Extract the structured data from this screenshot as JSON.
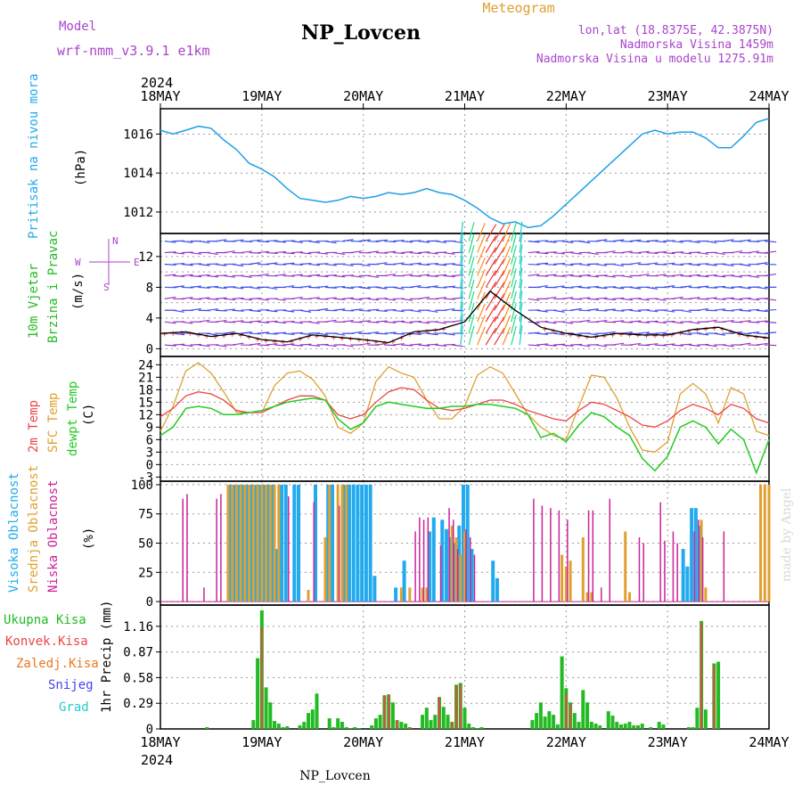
{
  "header": {
    "model_label": "Model",
    "model_name": "wrf-nmm_v3.9.1 e1km",
    "title": "NP_Lovcen",
    "meteogram_label": "Meteogram",
    "lonlat": "lon,lat (18.8375E, 42.3875N)",
    "altitude": "Nadmorska Visina 1459m",
    "model_altitude": "Nadmorska Visina u modelu 1275.91m",
    "year": "2024",
    "footer_title": "NP_Lovcen",
    "watermark": "made by Angel"
  },
  "colors": {
    "pressure": "#1ea0e6",
    "wind_label": "#22bb22",
    "wind_label2": "#22bb22",
    "t2m": "#ee4444",
    "sfc": "#e0a030",
    "dewpt": "#22cc22",
    "cloud_high": "#22aaee",
    "cloud_mid": "#e0a030",
    "cloud_low": "#cc2299",
    "precip_total": "#22bb22",
    "precip_conv": "#ee4444",
    "precip_frz": "#ee7722",
    "snow": "#4444ee",
    "hail": "#22cccc",
    "header_purple": "#aa44cc",
    "meteogram_orange": "#e0a030"
  },
  "chart_data": [
    {
      "type": "line",
      "panel": "pressure",
      "ylabel_1": "Pritisak na nivou mora",
      "ylabel_2": "(hPa)",
      "x_ticks": [
        "18MAY",
        "19MAY",
        "20MAY",
        "21MAY",
        "22MAY",
        "23MAY",
        "24MAY"
      ],
      "ylim": [
        1010.9,
        1017.3
      ],
      "y_ticks": [
        1012,
        1014,
        1016
      ],
      "grid": true,
      "series": [
        {
          "x": [
            0,
            3,
            6,
            9,
            12,
            15,
            18,
            21,
            24,
            27,
            30,
            33,
            36,
            39,
            42,
            45,
            48,
            51,
            54,
            57,
            60,
            63,
            66,
            69,
            72,
            75,
            78,
            81,
            84,
            87,
            90,
            93,
            96,
            99,
            102,
            105,
            108,
            111,
            114,
            117,
            120,
            123,
            126,
            129,
            132,
            135,
            138,
            141,
            144
          ],
          "values": [
            1016.2,
            1016.0,
            1016.2,
            1016.4,
            1016.3,
            1015.7,
            1015.2,
            1014.5,
            1014.2,
            1013.8,
            1013.2,
            1012.7,
            1012.6,
            1012.5,
            1012.6,
            1012.8,
            1012.7,
            1012.8,
            1013.0,
            1012.9,
            1013.0,
            1013.2,
            1013.0,
            1012.9,
            1012.6,
            1012.2,
            1011.7,
            1011.4,
            1011.5,
            1011.2,
            1011.3,
            1011.8,
            1012.4,
            1013.0,
            1013.6,
            1014.2,
            1014.8,
            1015.4,
            1016.0,
            1016.2,
            1016.0,
            1016.1,
            1016.1,
            1015.8,
            1015.3,
            1015.3,
            1015.9,
            1016.6,
            1016.8
          ]
        }
      ]
    },
    {
      "type": "line",
      "panel": "wind",
      "ylabel_1": "10m Vjetar",
      "ylabel_2": "Brzina i Pravac",
      "ylabel_3": "(m/s)",
      "compass": [
        "N",
        "W",
        "E",
        "S"
      ],
      "ylim": [
        -1,
        15
      ],
      "y_ticks": [
        0,
        4,
        8,
        12
      ],
      "y_ticks_minor": [
        2,
        6,
        10,
        14
      ],
      "series": [
        {
          "name": "speed",
          "x": [
            0,
            6,
            12,
            18,
            24,
            30,
            36,
            42,
            48,
            54,
            60,
            66,
            72,
            78,
            84,
            90,
            96,
            102,
            108,
            114,
            120,
            126,
            132,
            138,
            144
          ],
          "values": [
            2.0,
            2.2,
            1.6,
            2.0,
            1.2,
            0.9,
            1.8,
            1.5,
            1.2,
            0.8,
            2.2,
            2.5,
            3.5,
            7.5,
            5.0,
            2.8,
            2.0,
            1.5,
            2.0,
            1.8,
            1.8,
            2.5,
            2.8,
            1.8,
            1.4
          ]
        }
      ]
    },
    {
      "type": "line",
      "panel": "temperature",
      "ylabel_1": "2m Temp",
      "ylabel_2": "SFC Temp",
      "ylabel_3": "dewpt Temp",
      "ylabel_4": "(C)",
      "ylim": [
        -4,
        26
      ],
      "y_ticks": [
        -3,
        0,
        3,
        6,
        9,
        12,
        15,
        18,
        21,
        24
      ],
      "series": [
        {
          "name": "2m Temp",
          "x": [
            0,
            3,
            6,
            9,
            12,
            15,
            18,
            21,
            24,
            27,
            30,
            33,
            36,
            39,
            42,
            45,
            48,
            51,
            54,
            57,
            60,
            63,
            66,
            69,
            72,
            75,
            78,
            81,
            84,
            87,
            90,
            93,
            96,
            99,
            102,
            105,
            108,
            111,
            114,
            117,
            120,
            123,
            126,
            129,
            132,
            135,
            138,
            141,
            144
          ],
          "values": [
            11.5,
            13.5,
            16.5,
            17.5,
            17.0,
            15.5,
            13.0,
            12.5,
            12.5,
            14.0,
            15.5,
            16.5,
            16.5,
            15.5,
            12.0,
            11.0,
            12.0,
            15.0,
            17.5,
            18.5,
            18.0,
            15.5,
            13.5,
            13.0,
            13.5,
            14.5,
            15.5,
            15.5,
            14.5,
            13.0,
            12.0,
            11.0,
            10.5,
            13.0,
            15.0,
            14.5,
            13.0,
            11.5,
            9.5,
            9.0,
            10.5,
            13.0,
            14.5,
            13.5,
            12.0,
            14.5,
            13.5,
            11.0,
            10.0
          ]
        },
        {
          "name": "SFC Temp",
          "x": [
            0,
            3,
            6,
            9,
            12,
            15,
            18,
            21,
            24,
            27,
            30,
            33,
            36,
            39,
            42,
            45,
            48,
            51,
            54,
            57,
            60,
            63,
            66,
            69,
            72,
            75,
            78,
            81,
            84,
            87,
            90,
            93,
            96,
            99,
            102,
            105,
            108,
            111,
            114,
            117,
            120,
            123,
            126,
            129,
            132,
            135,
            138,
            141,
            144
          ],
          "values": [
            8.0,
            14.0,
            22.5,
            24.5,
            22.0,
            17.5,
            12.5,
            12.5,
            12.5,
            19.0,
            22.0,
            22.5,
            20.5,
            16.5,
            9.0,
            7.5,
            10.0,
            20.0,
            23.5,
            22.0,
            21.0,
            15.5,
            11.0,
            11.0,
            14.0,
            21.5,
            23.5,
            22.0,
            17.0,
            12.0,
            9.0,
            7.0,
            6.0,
            14.0,
            21.5,
            21.0,
            16.0,
            9.0,
            3.5,
            3.0,
            5.5,
            17.0,
            19.5,
            17.0,
            10.0,
            18.5,
            17.0,
            8.0,
            7.0
          ]
        },
        {
          "name": "dewpt Temp",
          "x": [
            0,
            3,
            6,
            9,
            12,
            15,
            18,
            21,
            24,
            27,
            30,
            33,
            36,
            39,
            42,
            45,
            48,
            51,
            54,
            57,
            60,
            63,
            66,
            69,
            72,
            75,
            78,
            81,
            84,
            87,
            90,
            93,
            96,
            99,
            102,
            105,
            108,
            111,
            114,
            117,
            120,
            123,
            126,
            129,
            132,
            135,
            138,
            141,
            144
          ],
          "values": [
            7.0,
            9.0,
            13.5,
            14.0,
            13.5,
            12.0,
            12.0,
            12.5,
            13.0,
            14.0,
            15.0,
            15.5,
            16.0,
            15.5,
            11.0,
            8.5,
            10.0,
            14.0,
            15.0,
            14.5,
            14.0,
            13.5,
            13.5,
            14.0,
            14.0,
            14.5,
            14.5,
            14.0,
            13.5,
            12.0,
            6.5,
            7.5,
            5.5,
            9.5,
            12.5,
            11.5,
            9.0,
            7.0,
            1.5,
            -1.5,
            2.0,
            9.0,
            10.5,
            9.0,
            5.0,
            8.5,
            6.0,
            -2.0,
            6.0
          ]
        }
      ]
    },
    {
      "type": "bar",
      "panel": "clouds",
      "ylabel_1": "Visoka Oblacnost",
      "ylabel_2": "Srednja Oblacnost",
      "ylabel_3": "Niska Oblacnost",
      "ylabel_4": "(%)",
      "ylim": [
        -3,
        103
      ],
      "y_ticks": [
        0,
        25,
        50,
        75,
        100
      ],
      "series": [
        {
          "name": "Visoka Oblacnost",
          "x": [
            17,
            18,
            19,
            20,
            21,
            22,
            23,
            24,
            25,
            26,
            27,
            28,
            29,
            30,
            32,
            33,
            37,
            40,
            41,
            44,
            45,
            46,
            47,
            48,
            49,
            50,
            51,
            56,
            58,
            64,
            65,
            67,
            68,
            69,
            70,
            71,
            72,
            73,
            74,
            79,
            80,
            124,
            125,
            126,
            127,
            128
          ],
          "values": [
            100,
            100,
            100,
            100,
            100,
            100,
            100,
            100,
            100,
            100,
            100,
            45,
            100,
            100,
            100,
            100,
            100,
            100,
            100,
            100,
            100,
            100,
            100,
            100,
            100,
            100,
            22,
            12,
            35,
            60,
            72,
            70,
            62,
            55,
            50,
            65,
            100,
            100,
            45,
            35,
            20,
            45,
            30,
            80,
            80,
            65
          ]
        },
        {
          "name": "Srednja Oblacnost",
          "x": [
            16,
            17,
            18,
            19,
            20,
            21,
            22,
            23,
            24,
            25,
            26,
            27,
            28,
            35,
            39,
            40,
            42,
            43,
            44,
            57,
            59,
            62,
            63,
            69,
            70,
            71,
            72,
            95,
            96,
            97,
            100,
            101,
            102,
            110,
            111,
            128,
            129,
            142,
            143,
            144
          ],
          "values": [
            100,
            100,
            100,
            100,
            100,
            100,
            100,
            100,
            100,
            100,
            100,
            100,
            100,
            10,
            55,
            100,
            100,
            100,
            100,
            12,
            12,
            12,
            12,
            65,
            55,
            40,
            60,
            40,
            30,
            35,
            55,
            8,
            8,
            60,
            8,
            70,
            12,
            100,
            100,
            100
          ]
        },
        {
          "name": "Niska Oblacnost",
          "x": [
            5,
            6,
            10,
            13,
            14,
            30,
            36,
            42,
            60,
            61,
            62,
            63,
            66,
            68,
            69,
            70,
            72,
            73,
            74,
            88,
            90,
            92,
            94,
            96,
            101,
            102,
            104,
            106,
            113,
            114,
            118,
            119,
            121,
            122,
            126,
            127,
            128,
            133
          ],
          "values": [
            88,
            92,
            12,
            88,
            92,
            90,
            85,
            82,
            60,
            72,
            70,
            72,
            48,
            80,
            70,
            45,
            62,
            55,
            40,
            88,
            82,
            80,
            78,
            70,
            78,
            78,
            12,
            88,
            55,
            50,
            85,
            52,
            60,
            50,
            60,
            70,
            55,
            60
          ]
        }
      ]
    },
    {
      "type": "bar",
      "panel": "precipitation",
      "ylabel_1": "Ukupna Kisa",
      "ylabel_2": "Konvek.Kisa",
      "ylabel_3": "Zaledj.Kisa",
      "ylabel_4": "Snijeg",
      "ylabel_5": "Grad",
      "ylabel_6": "1hr Precip (mm)",
      "ylim": [
        0,
        1.4
      ],
      "y_ticks": [
        0,
        0.29,
        0.58,
        0.87,
        1.16
      ],
      "series": [
        {
          "name": "Ukupna Kisa",
          "x": [
            11,
            22,
            23,
            24,
            25,
            26,
            27,
            28,
            29,
            30,
            33,
            34,
            35,
            36,
            37,
            40,
            41,
            42,
            43,
            44,
            45,
            46,
            47,
            50,
            51,
            52,
            53,
            54,
            55,
            56,
            57,
            58,
            59,
            62,
            63,
            64,
            65,
            66,
            67,
            68,
            69,
            70,
            71,
            72,
            73,
            74,
            75,
            76,
            88,
            89,
            90,
            91,
            92,
            93,
            94,
            95,
            96,
            97,
            98,
            99,
            100,
            101,
            102,
            103,
            104,
            106,
            107,
            108,
            109,
            110,
            111,
            112,
            113,
            114,
            116,
            118,
            119,
            125,
            126,
            127,
            128,
            129,
            131,
            132
          ],
          "values": [
            0.02,
            0.1,
            0.8,
            1.34,
            0.47,
            0.3,
            0.09,
            0.06,
            0.02,
            0.03,
            0.04,
            0.08,
            0.18,
            0.22,
            0.4,
            0.12,
            0.02,
            0.12,
            0.08,
            0.02,
            0.01,
            0.02,
            0.01,
            0.04,
            0.12,
            0.16,
            0.38,
            0.39,
            0.3,
            0.1,
            0.08,
            0.06,
            0.02,
            0.16,
            0.24,
            0.1,
            0.16,
            0.36,
            0.25,
            0.16,
            0.08,
            0.5,
            0.52,
            0.24,
            0.06,
            0.02,
            0.01,
            0.02,
            0.1,
            0.18,
            0.3,
            0.14,
            0.2,
            0.16,
            0.05,
            0.82,
            0.46,
            0.3,
            0.18,
            0.08,
            0.44,
            0.3,
            0.08,
            0.06,
            0.04,
            0.2,
            0.15,
            0.08,
            0.05,
            0.06,
            0.08,
            0.04,
            0.04,
            0.06,
            0.02,
            0.08,
            0.05,
            0.02,
            0.02,
            0.24,
            1.22,
            0.22,
            0.74,
            0.76
          ]
        },
        {
          "name": "Konvek.Kisa",
          "x": [
            24,
            53,
            54,
            56,
            59,
            66,
            69,
            70,
            71,
            96,
            97,
            128,
            131
          ],
          "values": [
            1.15,
            0.38,
            0.39,
            0.1,
            0.02,
            0.36,
            0.08,
            0.49,
            0.5,
            0.4,
            0.28,
            1.2,
            0.72
          ]
        }
      ]
    }
  ]
}
